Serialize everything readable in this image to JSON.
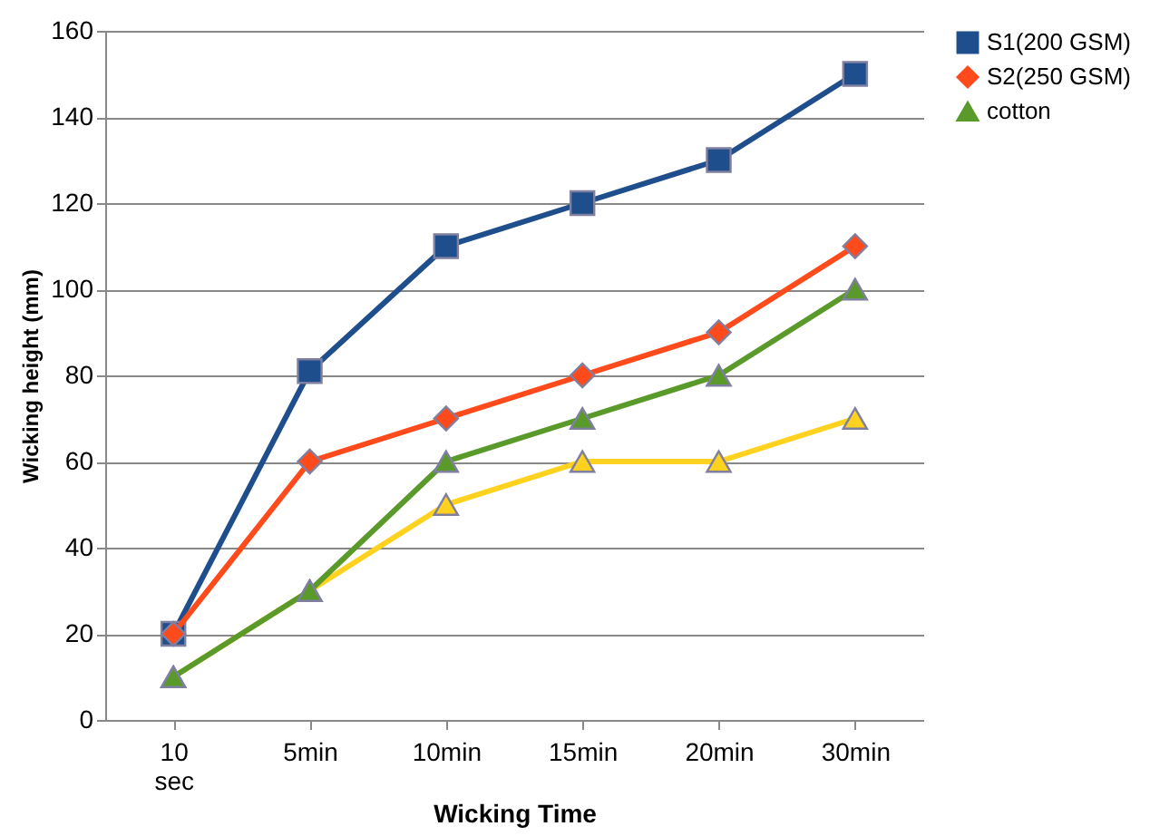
{
  "chart_data": {
    "type": "line",
    "xlabel": "Wicking Time",
    "ylabel": "Wicking height (mm)",
    "categories": [
      "10 sec",
      "5min",
      "10min",
      "15min",
      "20min",
      "30min"
    ],
    "series": [
      {
        "name": "S1(200 GSM)",
        "color": "#1f4e8c",
        "marker": "square",
        "values": [
          20,
          81,
          110,
          120,
          130,
          150
        ]
      },
      {
        "name": "S2(250 GSM)",
        "color": "#ff4a1c",
        "marker": "diamond",
        "values": [
          20,
          60,
          70,
          80,
          90,
          110
        ]
      },
      {
        "color": "#ffd21f",
        "marker": "triangle",
        "values": [
          10,
          30,
          50,
          60,
          60,
          70
        ]
      },
      {
        "name": "cotton",
        "color": "#5a9a2a",
        "marker": "triangle",
        "values": [
          10,
          30,
          60,
          70,
          80,
          100
        ]
      }
    ],
    "ylim": [
      0,
      160
    ],
    "yticks": [
      0,
      20,
      40,
      60,
      80,
      100,
      120,
      140,
      160
    ],
    "grid": "y",
    "legend": "right",
    "line_style": "solid"
  }
}
